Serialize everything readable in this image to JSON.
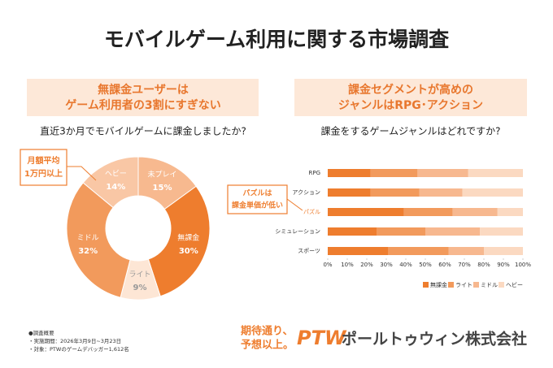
{
  "title": "モバイルゲーム利用に関する市場調査",
  "chart_data": [
    {
      "type": "donut",
      "headline": [
        "無課金ユーザーは",
        "ゲーム利用者の3割にすぎない"
      ],
      "title": "直近3か月でモバイルゲームに課金しましたか?",
      "categories": [
        "未プレイ",
        "無課金",
        "ライト",
        "ミドル",
        "ヘビー"
      ],
      "values": [
        15,
        30,
        9,
        32,
        14
      ],
      "value_labels": [
        "15%",
        "30%",
        "9%",
        "32%",
        "14%"
      ],
      "colors": [
        "#f7b98f",
        "#ee7d2e",
        "#fde6d5",
        "#f29a5c",
        "#f9c7a5"
      ],
      "annotation": [
        "月額平均",
        "1万円以上"
      ]
    },
    {
      "type": "bar",
      "orientation": "horizontal",
      "stacked": true,
      "headline": [
        "課金セグメントが高めの",
        "ジャンルはRPG･アクション"
      ],
      "title": "課金をするゲームジャンルはどれですか?",
      "categories": [
        "RPG",
        "アクション",
        "パズル",
        "シミュレーション",
        "スポーツ"
      ],
      "label_colors": [
        "#333333",
        "#333333",
        "#ee7d2e",
        "#333333",
        "#333333"
      ],
      "series": [
        {
          "name": "無課金",
          "color": "#ee7d2e",
          "values": [
            22,
            22,
            39,
            25,
            31
          ]
        },
        {
          "name": "ライト",
          "color": "#f29a5c",
          "values": [
            24,
            25,
            25,
            25,
            31
          ]
        },
        {
          "name": "ミドル",
          "color": "#f7b88f",
          "values": [
            26,
            22,
            23,
            28,
            18
          ]
        },
        {
          "name": "ヘビー",
          "color": "#fbd9c1",
          "values": [
            28,
            31,
            13,
            22,
            20
          ]
        }
      ],
      "xlim": [
        0,
        100
      ],
      "xticks": [
        {
          "value": 0,
          "label": "0%"
        },
        {
          "value": 10,
          "label": "10%"
        },
        {
          "value": 20,
          "label": "20%"
        },
        {
          "value": 30,
          "label": "30%"
        },
        {
          "value": 40,
          "label": "40%"
        },
        {
          "value": 50,
          "label": "50%"
        },
        {
          "value": 60,
          "label": "60%"
        },
        {
          "value": 70,
          "label": "70%"
        },
        {
          "value": 80,
          "label": "80%"
        },
        {
          "value": 90,
          "label": "90%"
        },
        {
          "value": 100,
          "label": "100%"
        }
      ],
      "legend": "bottom-right",
      "annotation": [
        "パズルは",
        "課金単価が低い"
      ]
    }
  ],
  "survey": [
    "●調査概要",
    "・実施期間：2026年3月9日~3月23日",
    "・対象：PTWのゲームデバッガー1,612名"
  ],
  "logo": {
    "tagline": [
      "期待通り、",
      "予想以上。"
    ],
    "mark": "PTW",
    "company": "ポールトゥウィン株式会社"
  }
}
